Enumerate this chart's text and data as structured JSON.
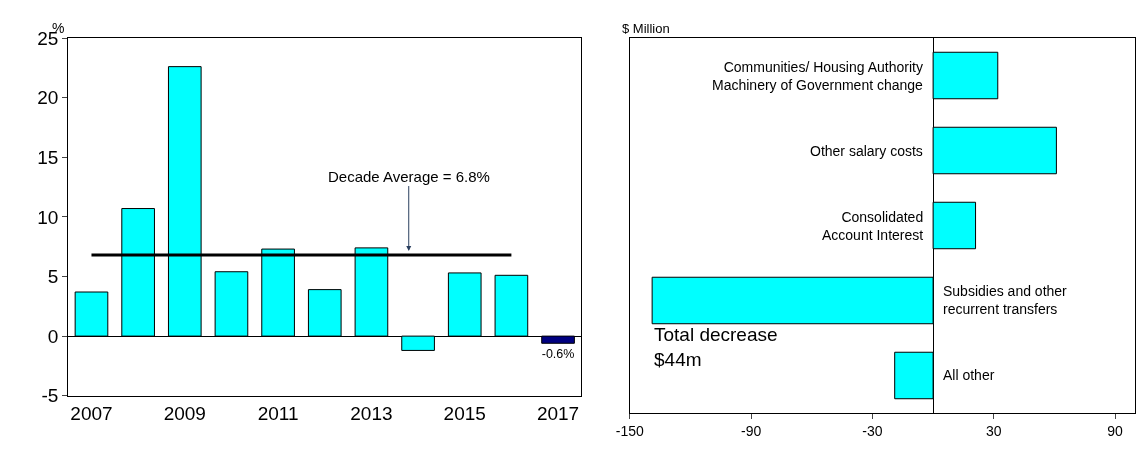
{
  "chart_data": [
    {
      "type": "bar",
      "ylabel": "%",
      "categories": [
        "2007",
        null,
        "2009",
        null,
        "2011",
        null,
        "2013",
        null,
        "2015",
        null,
        "2017"
      ],
      "series": [
        {
          "type": "bar",
          "values": [
            3.7,
            10.7,
            22.6,
            5.4,
            7.3,
            3.9,
            7.4,
            -1.2,
            5.3,
            5.1,
            -0.6
          ],
          "colors": [
            "#00ffff",
            "#00ffff",
            "#00ffff",
            "#00ffff",
            "#00ffff",
            "#00ffff",
            "#00ffff",
            "#00ffff",
            "#00ffff",
            "#00ffff",
            "#000080"
          ],
          "value_labels": [
            null,
            null,
            null,
            null,
            null,
            null,
            null,
            null,
            null,
            null,
            "-0.6%"
          ]
        },
        {
          "type": "line",
          "values": [
            6.8,
            6.8,
            6.8,
            6.8,
            6.8,
            6.8,
            6.8,
            6.8,
            6.8,
            6.8,
            null
          ],
          "color": "#000000"
        }
      ],
      "ylim": [
        -5,
        25
      ],
      "yticks": [
        -5,
        0,
        5,
        10,
        15,
        20,
        25
      ],
      "annotations": [
        {
          "text": "Decade Average = 6.8%",
          "y": 6.8
        }
      ]
    },
    {
      "type": "bar",
      "orientation": "horizontal",
      "xlabel": "$ Million",
      "categories": [
        "Communities/ Housing Authority\nMachinery of Government change",
        "Other salary costs",
        "Consolidated\nAccount Interest",
        "Subsidies and other\nrecurrent transfers",
        "All other"
      ],
      "values": [
        32,
        61,
        21,
        -139,
        -19
      ],
      "color": "#00ffff",
      "xlim": [
        -150,
        100
      ],
      "xticks": [
        -150,
        -90,
        -30,
        30,
        90
      ],
      "annotations": [
        "Total decrease\n$44m"
      ]
    }
  ]
}
